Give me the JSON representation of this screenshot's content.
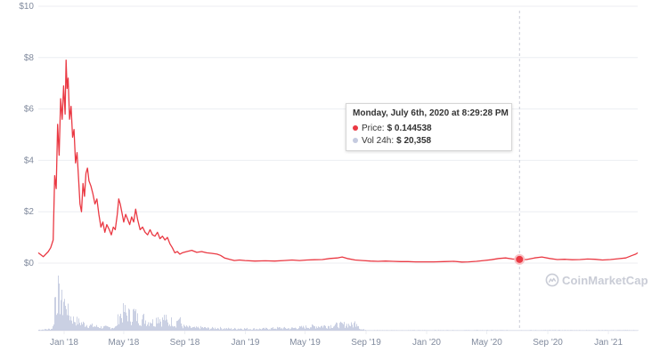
{
  "chart_data": {
    "type": "line",
    "title": "",
    "xlabel": "",
    "ylabel": "",
    "y_ticks": [
      "$0",
      "$2",
      "$4",
      "$6",
      "$8",
      "$10"
    ],
    "y_tick_values": [
      0,
      2,
      4,
      6,
      8,
      10
    ],
    "ylim": [
      0,
      10
    ],
    "x_ticks": [
      "Jan '18",
      "May '18",
      "Sep '18",
      "Jan '19",
      "May '19",
      "Sep '19",
      "Jan '20",
      "May '20",
      "Sep '20",
      "Jan '21"
    ],
    "x_tick_dates": [
      "2018-01-01",
      "2018-05-01",
      "2018-09-01",
      "2019-01-01",
      "2019-05-01",
      "2019-09-01",
      "2020-01-01",
      "2020-05-01",
      "2020-09-01",
      "2021-01-01"
    ],
    "xlim": [
      "2017-11-10",
      "2021-03-01"
    ],
    "grid": true,
    "series": [
      {
        "name": "Price",
        "color": "#ea3943",
        "points": [
          [
            "2017-11-10",
            0.4
          ],
          [
            "2017-11-20",
            0.25
          ],
          [
            "2017-11-30",
            0.45
          ],
          [
            "2017-12-05",
            0.6
          ],
          [
            "2017-12-10",
            0.9
          ],
          [
            "2017-12-13",
            3.4
          ],
          [
            "2017-12-16",
            2.9
          ],
          [
            "2017-12-19",
            5.4
          ],
          [
            "2017-12-22",
            4.2
          ],
          [
            "2017-12-25",
            6.4
          ],
          [
            "2017-12-28",
            5.6
          ],
          [
            "2017-12-31",
            6.9
          ],
          [
            "2018-01-03",
            5.8
          ],
          [
            "2018-01-05",
            7.9
          ],
          [
            "2018-01-07",
            6.8
          ],
          [
            "2018-01-09",
            7.2
          ],
          [
            "2018-01-12",
            5.6
          ],
          [
            "2018-01-15",
            6.1
          ],
          [
            "2018-01-18",
            4.9
          ],
          [
            "2018-01-21",
            5.2
          ],
          [
            "2018-01-24",
            3.9
          ],
          [
            "2018-01-27",
            4.3
          ],
          [
            "2018-01-30",
            3.3
          ],
          [
            "2018-02-02",
            2.3
          ],
          [
            "2018-02-05",
            2.0
          ],
          [
            "2018-02-08",
            3.1
          ],
          [
            "2018-02-11",
            2.6
          ],
          [
            "2018-02-14",
            3.5
          ],
          [
            "2018-02-17",
            3.7
          ],
          [
            "2018-02-20",
            3.2
          ],
          [
            "2018-02-24",
            3.0
          ],
          [
            "2018-02-28",
            2.7
          ],
          [
            "2018-03-04",
            2.3
          ],
          [
            "2018-03-08",
            2.5
          ],
          [
            "2018-03-12",
            1.9
          ],
          [
            "2018-03-16",
            1.4
          ],
          [
            "2018-03-20",
            1.6
          ],
          [
            "2018-03-24",
            1.2
          ],
          [
            "2018-03-28",
            1.5
          ],
          [
            "2018-04-02",
            1.3
          ],
          [
            "2018-04-06",
            1.1
          ],
          [
            "2018-04-10",
            1.4
          ],
          [
            "2018-04-14",
            1.3
          ],
          [
            "2018-04-18",
            1.9
          ],
          [
            "2018-04-21",
            2.5
          ],
          [
            "2018-04-24",
            2.3
          ],
          [
            "2018-04-27",
            2.0
          ],
          [
            "2018-05-01",
            1.6
          ],
          [
            "2018-05-05",
            1.9
          ],
          [
            "2018-05-09",
            1.7
          ],
          [
            "2018-05-13",
            1.5
          ],
          [
            "2018-05-17",
            1.8
          ],
          [
            "2018-05-21",
            1.6
          ],
          [
            "2018-05-25",
            2.1
          ],
          [
            "2018-05-29",
            1.7
          ],
          [
            "2018-06-03",
            1.3
          ],
          [
            "2018-06-08",
            1.4
          ],
          [
            "2018-06-13",
            1.2
          ],
          [
            "2018-06-18",
            1.1
          ],
          [
            "2018-06-23",
            1.3
          ],
          [
            "2018-06-28",
            1.1
          ],
          [
            "2018-07-03",
            1.05
          ],
          [
            "2018-07-08",
            1.2
          ],
          [
            "2018-07-13",
            0.95
          ],
          [
            "2018-07-18",
            1.05
          ],
          [
            "2018-07-23",
            0.9
          ],
          [
            "2018-07-28",
            1.0
          ],
          [
            "2018-08-02",
            0.75
          ],
          [
            "2018-08-07",
            0.6
          ],
          [
            "2018-08-12",
            0.4
          ],
          [
            "2018-08-17",
            0.45
          ],
          [
            "2018-08-22",
            0.35
          ],
          [
            "2018-08-27",
            0.4
          ],
          [
            "2018-09-05",
            0.45
          ],
          [
            "2018-09-15",
            0.5
          ],
          [
            "2018-09-25",
            0.42
          ],
          [
            "2018-10-05",
            0.45
          ],
          [
            "2018-10-15",
            0.4
          ],
          [
            "2018-10-25",
            0.38
          ],
          [
            "2018-11-05",
            0.35
          ],
          [
            "2018-11-12",
            0.3
          ],
          [
            "2018-11-20",
            0.2
          ],
          [
            "2018-11-30",
            0.15
          ],
          [
            "2018-12-10",
            0.1
          ],
          [
            "2018-12-20",
            0.12
          ],
          [
            "2018-12-31",
            0.1
          ],
          [
            "2019-01-20",
            0.08
          ],
          [
            "2019-02-10",
            0.09
          ],
          [
            "2019-03-01",
            0.08
          ],
          [
            "2019-03-20",
            0.1
          ],
          [
            "2019-04-05",
            0.12
          ],
          [
            "2019-04-20",
            0.1
          ],
          [
            "2019-05-05",
            0.12
          ],
          [
            "2019-05-20",
            0.13
          ],
          [
            "2019-06-05",
            0.14
          ],
          [
            "2019-06-20",
            0.18
          ],
          [
            "2019-07-05",
            0.2
          ],
          [
            "2019-07-15",
            0.24
          ],
          [
            "2019-07-25",
            0.18
          ],
          [
            "2019-08-10",
            0.12
          ],
          [
            "2019-08-25",
            0.1
          ],
          [
            "2019-09-10",
            0.08
          ],
          [
            "2019-09-25",
            0.07
          ],
          [
            "2019-10-10",
            0.08
          ],
          [
            "2019-10-25",
            0.07
          ],
          [
            "2019-11-10",
            0.06
          ],
          [
            "2019-11-25",
            0.06
          ],
          [
            "2019-12-10",
            0.05
          ],
          [
            "2019-12-25",
            0.05
          ],
          [
            "2020-01-15",
            0.05
          ],
          [
            "2020-02-05",
            0.06
          ],
          [
            "2020-02-25",
            0.07
          ],
          [
            "2020-03-12",
            0.04
          ],
          [
            "2020-03-25",
            0.05
          ],
          [
            "2020-04-10",
            0.07
          ],
          [
            "2020-04-25",
            0.1
          ],
          [
            "2020-05-10",
            0.13
          ],
          [
            "2020-05-25",
            0.18
          ],
          [
            "2020-06-08",
            0.2
          ],
          [
            "2020-06-22",
            0.16
          ],
          [
            "2020-07-06",
            0.144538
          ],
          [
            "2020-07-20",
            0.14
          ],
          [
            "2020-08-05",
            0.2
          ],
          [
            "2020-08-20",
            0.24
          ],
          [
            "2020-09-05",
            0.18
          ],
          [
            "2020-09-20",
            0.14
          ],
          [
            "2020-10-05",
            0.15
          ],
          [
            "2020-10-20",
            0.13
          ],
          [
            "2020-11-05",
            0.14
          ],
          [
            "2020-11-20",
            0.16
          ],
          [
            "2020-12-05",
            0.15
          ],
          [
            "2020-12-20",
            0.12
          ],
          [
            "2021-01-05",
            0.14
          ],
          [
            "2021-01-20",
            0.17
          ],
          [
            "2021-02-05",
            0.2
          ],
          [
            "2021-02-18",
            0.3
          ],
          [
            "2021-02-25",
            0.35
          ],
          [
            "2021-03-01",
            0.4
          ]
        ]
      },
      {
        "name": "Vol 24h",
        "color": "#c5cbe0",
        "note_scale": "relative",
        "points": [
          [
            "2017-11-10",
            0.02
          ],
          [
            "2017-11-25",
            0.03
          ],
          [
            "2017-12-05",
            0.04
          ],
          [
            "2017-12-10",
            0.1
          ],
          [
            "2017-12-13",
            0.9
          ],
          [
            "2017-12-16",
            0.55
          ],
          [
            "2017-12-19",
            1.0
          ],
          [
            "2017-12-22",
            0.6
          ],
          [
            "2017-12-25",
            0.75
          ],
          [
            "2017-12-28",
            0.5
          ],
          [
            "2017-12-31",
            0.8
          ],
          [
            "2018-01-03",
            0.45
          ],
          [
            "2018-01-05",
            0.7
          ],
          [
            "2018-01-08",
            0.4
          ],
          [
            "2018-01-11",
            0.35
          ],
          [
            "2018-01-14",
            0.3
          ],
          [
            "2018-01-18",
            0.25
          ],
          [
            "2018-01-25",
            0.22
          ],
          [
            "2018-02-01",
            0.18
          ],
          [
            "2018-02-10",
            0.15
          ],
          [
            "2018-02-20",
            0.12
          ],
          [
            "2018-03-01",
            0.1
          ],
          [
            "2018-03-15",
            0.08
          ],
          [
            "2018-04-01",
            0.07
          ],
          [
            "2018-04-15",
            0.08
          ],
          [
            "2018-04-22",
            0.4
          ],
          [
            "2018-04-26",
            0.3
          ],
          [
            "2018-05-01",
            0.45
          ],
          [
            "2018-05-06",
            0.35
          ],
          [
            "2018-05-10",
            0.38
          ],
          [
            "2018-05-15",
            0.25
          ],
          [
            "2018-05-20",
            0.42
          ],
          [
            "2018-05-27",
            0.3
          ],
          [
            "2018-06-03",
            0.22
          ],
          [
            "2018-06-10",
            0.28
          ],
          [
            "2018-06-17",
            0.18
          ],
          [
            "2018-06-24",
            0.24
          ],
          [
            "2018-07-01",
            0.15
          ],
          [
            "2018-07-08",
            0.35
          ],
          [
            "2018-07-15",
            0.2
          ],
          [
            "2018-07-22",
            0.3
          ],
          [
            "2018-07-29",
            0.14
          ],
          [
            "2018-08-05",
            0.22
          ],
          [
            "2018-08-12",
            0.12
          ],
          [
            "2018-08-19",
            0.3
          ],
          [
            "2018-08-26",
            0.1
          ],
          [
            "2018-09-05",
            0.08
          ],
          [
            "2018-09-20",
            0.06
          ],
          [
            "2018-10-05",
            0.07
          ],
          [
            "2018-10-20",
            0.05
          ],
          [
            "2018-11-05",
            0.06
          ],
          [
            "2018-11-20",
            0.05
          ],
          [
            "2018-12-05",
            0.04
          ],
          [
            "2018-12-20",
            0.05
          ],
          [
            "2019-01-10",
            0.04
          ],
          [
            "2019-02-01",
            0.04
          ],
          [
            "2019-02-20",
            0.05
          ],
          [
            "2019-03-10",
            0.06
          ],
          [
            "2019-03-30",
            0.05
          ],
          [
            "2019-04-20",
            0.07
          ],
          [
            "2019-05-10",
            0.09
          ],
          [
            "2019-05-30",
            0.1
          ],
          [
            "2019-06-20",
            0.11
          ],
          [
            "2019-07-10",
            0.13
          ],
          [
            "2019-07-25",
            0.14
          ],
          [
            "2019-08-05",
            0.12
          ],
          [
            "2019-08-12",
            0.22
          ],
          [
            "2019-08-20",
            0.03
          ],
          [
            "2019-09-10",
            0.01
          ],
          [
            "2019-12-31",
            0.01
          ],
          [
            "2020-06-30",
            0.01
          ],
          [
            "2021-03-01",
            0.01
          ]
        ]
      }
    ],
    "hover": {
      "date": "2020-07-06",
      "price": 0.144538
    },
    "tooltip": {
      "title": "Monday, July 6th, 2020 at 8:29:28 PM",
      "price_label": "Price:",
      "price_value": "$ 0.144538",
      "vol_label": "Vol 24h:",
      "vol_value": "$ 20,358"
    },
    "colors": {
      "price_line": "#ea3943",
      "volume_bars": "#c5cbe0",
      "grid": "#eceef2",
      "axis_text": "#808a9d",
      "crosshair": "#c9ccd6"
    }
  },
  "watermark": {
    "text": "CoinMarketCap",
    "icon": "coinmarketcap-logo-icon"
  }
}
